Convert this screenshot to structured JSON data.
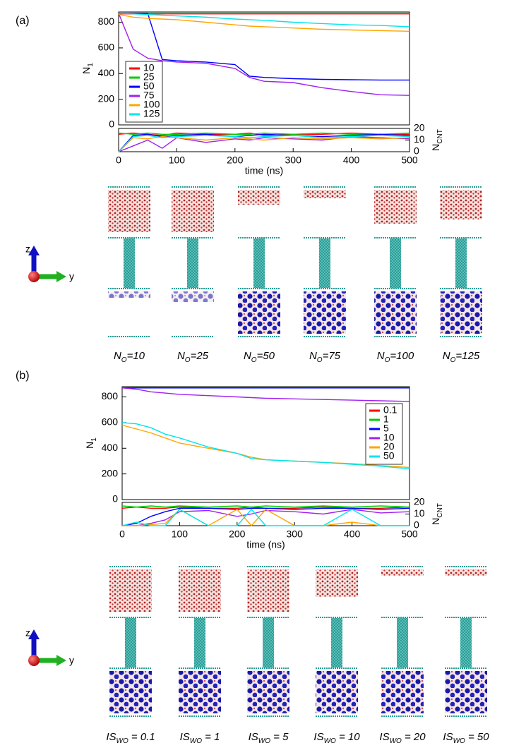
{
  "chart_data": [
    {
      "type": "line",
      "xlim": [
        0,
        500
      ],
      "ylim": [
        0,
        880
      ],
      "yticks": [
        0,
        200,
        400,
        600,
        800
      ],
      "ylabel": {
        "main": "N",
        "sub": "1"
      },
      "legend": "upper-left",
      "x": [
        0,
        25,
        50,
        75,
        100,
        150,
        200,
        225,
        250,
        300,
        350,
        400,
        450,
        500
      ],
      "series": [
        {
          "name": "10",
          "color": "#ff0000",
          "values": [
            865,
            865,
            865,
            865,
            865,
            865,
            865,
            865,
            865,
            865,
            865,
            865,
            865,
            865
          ]
        },
        {
          "name": "25",
          "color": "#00cc00",
          "values": [
            870,
            870,
            870,
            870,
            870,
            870,
            870,
            870,
            870,
            870,
            870,
            870,
            870,
            870
          ]
        },
        {
          "name": "50",
          "color": "#0000ff",
          "values": [
            870,
            870,
            870,
            510,
            500,
            490,
            470,
            380,
            370,
            360,
            355,
            352,
            350,
            350
          ]
        },
        {
          "name": "75",
          "color": "#a020f0",
          "values": [
            870,
            590,
            520,
            500,
            490,
            480,
            440,
            370,
            340,
            330,
            290,
            260,
            235,
            230
          ]
        },
        {
          "name": "100",
          "color": "#ffa500",
          "values": [
            860,
            840,
            830,
            825,
            820,
            800,
            780,
            770,
            765,
            755,
            745,
            740,
            735,
            730
          ]
        },
        {
          "name": "125",
          "color": "#00e5ee",
          "values": [
            870,
            865,
            860,
            855,
            850,
            840,
            825,
            820,
            815,
            800,
            790,
            780,
            775,
            765
          ]
        }
      ]
    },
    {
      "type": "line",
      "xlim": [
        0,
        500
      ],
      "xticks": [
        0,
        100,
        200,
        300,
        400,
        500
      ],
      "xlabel": "time (ns)",
      "y2lim": [
        0,
        20
      ],
      "y2ticks": [
        0,
        10,
        20
      ],
      "y2label": {
        "main": "N",
        "sub": "CNT"
      },
      "x": [
        0,
        25,
        50,
        75,
        100,
        150,
        200,
        225,
        250,
        300,
        350,
        400,
        450,
        500
      ],
      "series": [
        {
          "color": "#ff0000",
          "axis": "y2",
          "values": [
            15,
            16,
            15,
            14,
            16,
            15,
            15,
            16,
            14,
            15,
            15,
            16,
            15,
            15
          ]
        },
        {
          "color": "#00cc00",
          "axis": "y2",
          "values": [
            16,
            15,
            16,
            15,
            15,
            16,
            15,
            15,
            16,
            15,
            16,
            15,
            15,
            16
          ]
        },
        {
          "color": "#0000ff",
          "axis": "y2",
          "values": [
            0,
            14,
            15,
            13,
            14,
            15,
            13,
            14,
            15,
            14,
            13,
            14,
            15,
            14
          ]
        },
        {
          "color": "#a020f0",
          "axis": "y2",
          "values": [
            0,
            5,
            10,
            3,
            12,
            8,
            11,
            10,
            12,
            11,
            10,
            13,
            12,
            11
          ]
        },
        {
          "color": "#ffa500",
          "axis": "y2",
          "values": [
            0,
            12,
            11,
            13,
            12,
            10,
            12,
            11,
            10,
            12,
            11,
            12,
            11,
            12
          ]
        },
        {
          "color": "#00e5ee",
          "axis": "y2",
          "values": [
            0,
            13,
            14,
            12,
            13,
            14,
            13,
            12,
            13,
            14,
            12,
            13,
            14,
            13
          ]
        }
      ]
    },
    {
      "type": "line",
      "xlim": [
        0,
        500
      ],
      "ylim": [
        0,
        880
      ],
      "yticks": [
        0,
        200,
        400,
        600,
        800
      ],
      "ylabel": {
        "main": "N",
        "sub": "1"
      },
      "legend": "upper-right",
      "x": [
        0,
        25,
        50,
        75,
        100,
        150,
        200,
        225,
        250,
        300,
        350,
        400,
        450,
        500
      ],
      "series": [
        {
          "name": "0.1",
          "color": "#ff0000",
          "values": [
            870,
            870,
            870,
            870,
            870,
            870,
            870,
            870,
            870,
            870,
            870,
            870,
            870,
            870
          ]
        },
        {
          "name": "1",
          "color": "#00cc00",
          "values": [
            872,
            872,
            872,
            872,
            872,
            872,
            872,
            872,
            872,
            872,
            872,
            872,
            872,
            872
          ]
        },
        {
          "name": "5",
          "color": "#0000ff",
          "values": [
            870,
            870,
            870,
            870,
            870,
            870,
            870,
            870,
            870,
            870,
            870,
            870,
            870,
            870
          ]
        },
        {
          "name": "10",
          "color": "#a020f0",
          "values": [
            870,
            860,
            840,
            830,
            820,
            810,
            800,
            795,
            790,
            785,
            780,
            775,
            770,
            765
          ]
        },
        {
          "name": "20",
          "color": "#ffa500",
          "values": [
            580,
            550,
            520,
            480,
            440,
            400,
            360,
            330,
            310,
            300,
            290,
            280,
            265,
            250
          ]
        },
        {
          "name": "50",
          "color": "#00e5ee",
          "values": [
            600,
            590,
            560,
            510,
            480,
            410,
            360,
            320,
            310,
            300,
            290,
            275,
            260,
            240
          ]
        }
      ]
    },
    {
      "type": "line",
      "xlim": [
        0,
        500
      ],
      "xticks": [
        0,
        100,
        200,
        300,
        400,
        500
      ],
      "xlabel": "time (ns)",
      "y2lim": [
        0,
        20
      ],
      "y2ticks": [
        0,
        10,
        20
      ],
      "y2label": {
        "main": "N",
        "sub": "CNT"
      },
      "x": [
        0,
        25,
        50,
        75,
        100,
        150,
        200,
        225,
        250,
        300,
        350,
        400,
        450,
        500
      ],
      "series": [
        {
          "color": "#ff0000",
          "axis": "y2",
          "values": [
            15,
            16,
            15,
            15,
            16,
            15,
            15,
            16,
            15,
            15,
            16,
            15,
            15,
            16
          ]
        },
        {
          "color": "#00cc00",
          "axis": "y2",
          "values": [
            17,
            16,
            17,
            16,
            17,
            16,
            17,
            16,
            17,
            16,
            17,
            16,
            17,
            16
          ]
        },
        {
          "color": "#0000ff",
          "axis": "y2",
          "values": [
            0,
            2,
            8,
            12,
            15,
            15,
            14,
            15,
            15,
            14,
            15,
            15,
            14,
            15
          ]
        },
        {
          "color": "#a020f0",
          "axis": "y2",
          "values": [
            0,
            0,
            2,
            5,
            12,
            13,
            8,
            10,
            13,
            12,
            10,
            14,
            11,
            12
          ]
        },
        {
          "color": "#ffa500",
          "axis": "y2",
          "values": [
            0,
            0,
            1,
            2,
            14,
            0,
            14,
            0,
            14,
            0,
            0,
            3,
            0,
            0
          ]
        },
        {
          "color": "#00e5ee",
          "axis": "y2",
          "values": [
            0,
            3,
            0,
            0,
            14,
            0,
            0,
            14,
            0,
            0,
            0,
            14,
            0,
            0
          ]
        }
      ]
    }
  ],
  "panels": [
    {
      "label": "(a)",
      "axes_icon": {
        "z": "z",
        "y": "y"
      },
      "snapshots": [
        {
          "main": "N",
          "sub": "O",
          "rest": "=10"
        },
        {
          "main": "N",
          "sub": "O",
          "rest": "=25"
        },
        {
          "main": "N",
          "sub": "O",
          "rest": "=50"
        },
        {
          "main": "N",
          "sub": "O",
          "rest": "=75"
        },
        {
          "main": "N",
          "sub": "O",
          "rest": "=100"
        },
        {
          "main": "N",
          "sub": "O",
          "rest": "=125"
        }
      ]
    },
    {
      "label": "(b)",
      "axes_icon": {
        "z": "z",
        "y": "y"
      },
      "snapshots": [
        {
          "main": "IS",
          "sub": "WO",
          "rest": " = 0.1"
        },
        {
          "main": "IS",
          "sub": "WO",
          "rest": " = 1"
        },
        {
          "main": "IS",
          "sub": "WO",
          "rest": " = 5"
        },
        {
          "main": "IS",
          "sub": "WO",
          "rest": " = 10"
        },
        {
          "main": "IS",
          "sub": "WO",
          "rest": " = 20"
        },
        {
          "main": "IS",
          "sub": "WO",
          "rest": " = 50"
        }
      ]
    }
  ]
}
